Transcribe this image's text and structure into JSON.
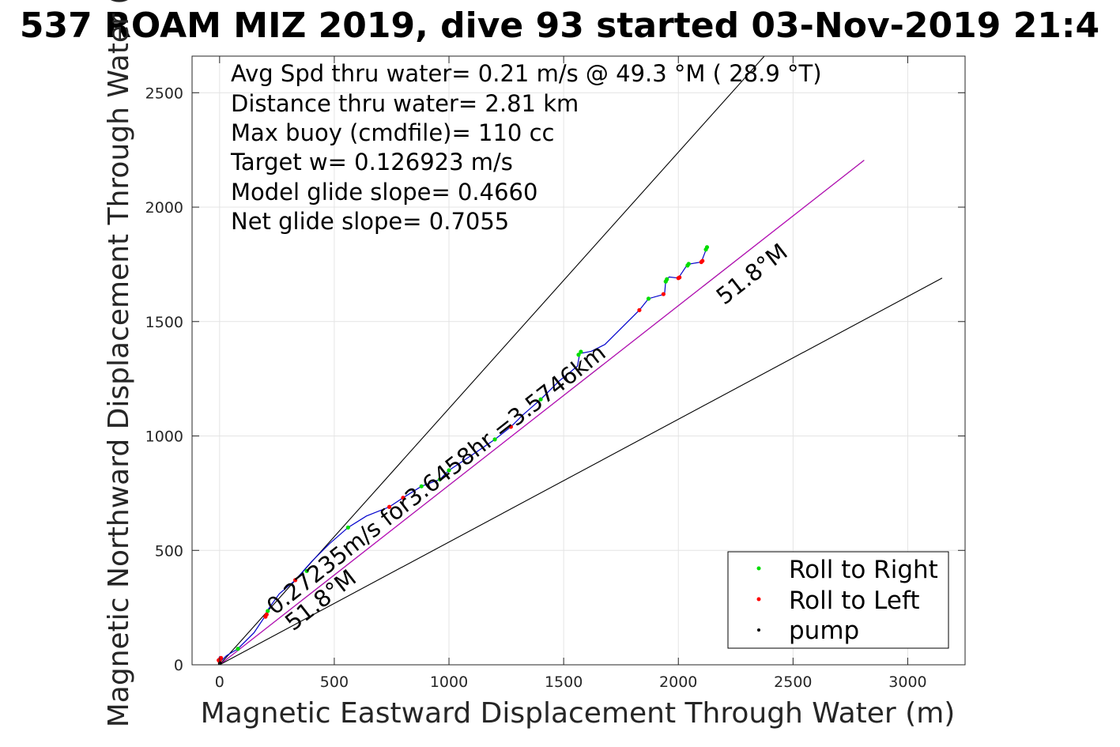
{
  "chart_data": {
    "type": "scatter",
    "title": "537 ROAM MIZ 2019, dive 93 started 03-Nov-2019 21:4",
    "xlabel": "Magnetic Eastward Displacement Through Water (m)",
    "ylabel": "Magnetic Northward Displacement Through Water (",
    "xlim": [
      -120,
      3250
    ],
    "ylim": [
      0,
      2660
    ],
    "xticks": [
      0,
      500,
      1000,
      1500,
      2000,
      2500,
      3000
    ],
    "yticks": [
      0,
      500,
      1000,
      1500,
      2000,
      2500
    ],
    "grid": true,
    "legend_position": "bottom-right",
    "legend": [
      {
        "label": "Roll to Right",
        "color": "#00dd00"
      },
      {
        "label": "Roll to Left",
        "color": "#ff0000"
      },
      {
        "label": "pump",
        "color": "#000000"
      }
    ],
    "info_lines": [
      "Avg Spd thru water=  0.21 m/s @  49.3 °M ( 28.9 °T)",
      "Distance thru water=  2.81 km",
      "Max buoy (cmdfile)= 110 cc",
      "Target w= 0.126923 m/s",
      "Model glide slope= 0.4660",
      "Net glide slope= 0.7055"
    ],
    "reference_lines": [
      {
        "name": "upper",
        "color": "#000000",
        "points": [
          [
            0,
            0
          ],
          [
            2375,
            2660
          ]
        ]
      },
      {
        "name": "heading",
        "color": "#000000",
        "points": [
          [
            0,
            0
          ],
          [
            2810,
            2205
          ]
        ]
      },
      {
        "name": "heading-overlay",
        "color": "#cc00cc",
        "points": [
          [
            0,
            0
          ],
          [
            2810,
            2205
          ]
        ]
      },
      {
        "name": "lower",
        "color": "#000000",
        "points": [
          [
            0,
            0
          ],
          [
            3150,
            1690
          ]
        ]
      }
    ],
    "annotations": [
      {
        "text": "51.8°M",
        "x": 2200,
        "y": 1570,
        "angle": -38
      },
      {
        "text": "51.8°M",
        "x": 320,
        "y": 145,
        "angle": -38
      },
      {
        "text": "0.27235m/s for3.6458hr =3.5746km",
        "x": 240,
        "y": 215,
        "angle": -38
      }
    ],
    "track": {
      "name": "track",
      "color": "#0000cc",
      "x": [
        0,
        -5,
        0,
        10,
        30,
        80,
        150,
        200,
        210,
        260,
        330,
        400,
        480,
        560,
        640,
        740,
        800,
        880,
        960,
        1000,
        1060,
        1120,
        1200,
        1270,
        1320,
        1400,
        1480,
        1560,
        1570,
        1620,
        1680,
        1760,
        1830,
        1870,
        1940,
        1945,
        1960,
        2000,
        2040,
        2100,
        2125
      ],
      "y": [
        10,
        25,
        35,
        20,
        40,
        70,
        140,
        215,
        240,
        310,
        370,
        450,
        530,
        600,
        650,
        690,
        730,
        780,
        810,
        850,
        890,
        930,
        985,
        1040,
        1090,
        1160,
        1240,
        1305,
        1360,
        1370,
        1400,
        1480,
        1550,
        1600,
        1620,
        1680,
        1695,
        1690,
        1750,
        1760,
        1825
      ]
    },
    "roll_right": {
      "x": [
        80,
        210,
        380,
        560,
        880,
        960,
        1000,
        1200,
        1400,
        1565,
        1575,
        1870,
        1945,
        1950,
        2040,
        2045,
        2120,
        2125
      ],
      "y": [
        70,
        235,
        410,
        600,
        780,
        810,
        850,
        985,
        1160,
        1355,
        1368,
        1600,
        1675,
        1685,
        1745,
        1752,
        1815,
        1825
      ]
    },
    "roll_left": {
      "x": [
        0,
        3,
        6,
        -4,
        200,
        205,
        330,
        740,
        800,
        1270,
        1830,
        1935,
        2000,
        2005,
        2100,
        2105
      ],
      "y": [
        15,
        25,
        30,
        20,
        210,
        220,
        370,
        690,
        730,
        1040,
        1550,
        1620,
        1690,
        1693,
        1760,
        1765
      ]
    },
    "pump": {
      "x": [
        0,
        2
      ],
      "y": [
        5,
        8
      ]
    }
  }
}
